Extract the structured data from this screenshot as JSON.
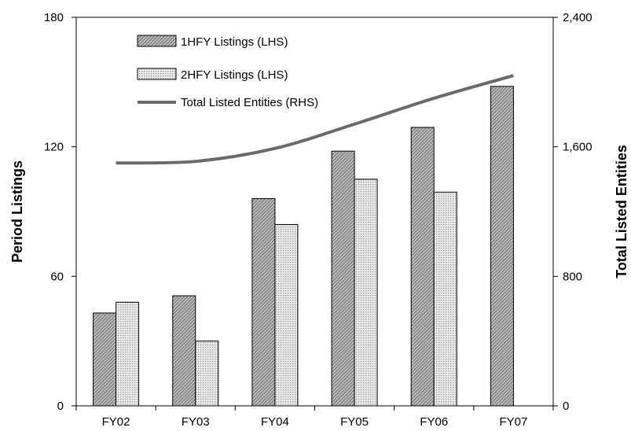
{
  "chart_data": {
    "type": "bar",
    "categories": [
      "FY02",
      "FY03",
      "FY04",
      "FY05",
      "FY06",
      "FY07"
    ],
    "series": [
      {
        "name": "1HFY Listings (LHS)",
        "axis": "left",
        "kind": "bar",
        "pattern": "diagonal-hatch",
        "values": [
          43,
          51,
          96,
          118,
          129,
          148
        ]
      },
      {
        "name": "2HFY Listings (LHS)",
        "axis": "left",
        "kind": "bar",
        "pattern": "dotted",
        "values": [
          48,
          30,
          84,
          105,
          99,
          null
        ]
      },
      {
        "name": "Total Listed Entities (RHS)",
        "axis": "right",
        "kind": "line",
        "values": [
          1500,
          1510,
          1590,
          1740,
          1900,
          2040
        ]
      }
    ],
    "left_axis": {
      "label": "Period Listings",
      "ylim": [
        0,
        180
      ],
      "ticks": [
        "0",
        "60",
        "120",
        "180"
      ],
      "tick_values": [
        0,
        60,
        120,
        180
      ]
    },
    "right_axis": {
      "label": "Total Listed Entities",
      "ylim": [
        0,
        2400
      ],
      "ticks": [
        "0",
        "800",
        "1,600",
        "2,400"
      ],
      "tick_values": [
        0,
        800,
        1600,
        2400
      ]
    },
    "xlabel": "",
    "legend_position": "top-left",
    "grid": false
  }
}
